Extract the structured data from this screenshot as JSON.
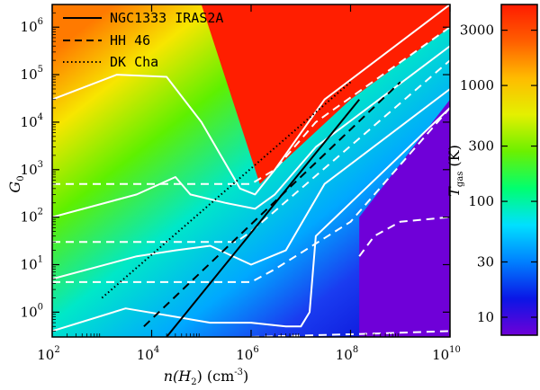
{
  "chart_data": {
    "type": "heatmap",
    "title": "",
    "xlabel": {
      "base": "n(H",
      "sub": "2",
      "rest": ") (cm",
      "sup": "-3",
      "close": ")"
    },
    "ylabel": {
      "base": "G",
      "sub": "0"
    },
    "x_scale": "log",
    "y_scale": "log",
    "xlim": [
      100,
      10000000000
    ],
    "ylim": [
      0.3,
      3000000
    ],
    "x_ticks": [
      {
        "value": 100,
        "base": "10",
        "exp": "2"
      },
      {
        "value": 10000,
        "base": "10",
        "exp": "4"
      },
      {
        "value": 1000000,
        "base": "10",
        "exp": "6"
      },
      {
        "value": 100000000,
        "base": "10",
        "exp": "8"
      },
      {
        "value": 10000000000,
        "base": "10",
        "exp": "10"
      }
    ],
    "y_ticks": [
      {
        "value": 1,
        "base": "10",
        "exp": "0"
      },
      {
        "value": 10,
        "base": "10",
        "exp": "1"
      },
      {
        "value": 100,
        "base": "10",
        "exp": "2"
      },
      {
        "value": 1000,
        "base": "10",
        "exp": "3"
      },
      {
        "value": 10000,
        "base": "10",
        "exp": "4"
      },
      {
        "value": 100000,
        "base": "10",
        "exp": "5"
      },
      {
        "value": 1000000,
        "base": "10",
        "exp": "6"
      }
    ],
    "colorbar": {
      "label": {
        "base": "T",
        "sub": "gas",
        "rest": " (K)"
      },
      "scale": "log",
      "range": [
        7,
        5000
      ],
      "ticks": [
        {
          "value": 10,
          "label": "10"
        },
        {
          "value": 30,
          "label": "30"
        },
        {
          "value": 100,
          "label": "100"
        },
        {
          "value": 300,
          "label": "300"
        },
        {
          "value": 1000,
          "label": "1000"
        },
        {
          "value": 3000,
          "label": "3000"
        }
      ],
      "colors": [
        "#6f00d8",
        "#0a16e6",
        "#0080ff",
        "#00e0ff",
        "#00ff70",
        "#6cf000",
        "#e4f000",
        "#ffbb00",
        "#ff5e00",
        "#ff1b00"
      ]
    },
    "regions": [
      {
        "name": "hot",
        "temperature_K": 3000,
        "color": "#ff1e00",
        "points": [
          [
            100000,
            3000000
          ],
          [
            10000000000,
            3000000
          ],
          [
            10000000000,
            1000000
          ],
          [
            100000000,
            30000
          ],
          [
            3000000,
            1000
          ],
          [
            1500000,
            500
          ]
        ]
      },
      {
        "name": "cold",
        "temperature_K": 8,
        "color": "#6f00d8",
        "points": [
          [
            200000000,
            0.3
          ],
          [
            10000000000,
            0.3
          ],
          [
            10000000000,
            30000
          ],
          [
            150000000,
            100
          ],
          [
            150000000,
            0.3
          ]
        ]
      }
    ],
    "contour_levels_solid": [
      {
        "name": "upper",
        "points": [
          [
            100,
            30000
          ],
          [
            2000,
            100000
          ],
          [
            20000,
            90000
          ],
          [
            100000,
            10000
          ],
          [
            600000,
            400
          ],
          [
            1200000,
            300
          ],
          [
            3000000,
            1000
          ],
          [
            30000000,
            30000
          ],
          [
            10000000000,
            3000000
          ]
        ]
      },
      {
        "name": "middle",
        "points": [
          [
            100,
            100
          ],
          [
            5000,
            300
          ],
          [
            30000,
            700
          ],
          [
            60000,
            300
          ],
          [
            300000,
            200
          ],
          [
            1200000,
            150
          ],
          [
            3000000,
            300
          ],
          [
            20000000,
            3000
          ],
          [
            10000000000,
            400000
          ]
        ]
      },
      {
        "name": "lower",
        "points": [
          [
            100,
            5
          ],
          [
            5000,
            15
          ],
          [
            30000,
            20
          ],
          [
            150000,
            25
          ],
          [
            1000000,
            10
          ],
          [
            5000000,
            20
          ],
          [
            30000000,
            500
          ],
          [
            10000000000,
            50000
          ]
        ]
      },
      {
        "name": "bottom",
        "points": [
          [
            100,
            0.4
          ],
          [
            3000,
            1.2
          ],
          [
            30000,
            0.8
          ],
          [
            150000,
            0.6
          ],
          [
            1000000,
            0.6
          ],
          [
            5000000,
            0.5
          ],
          [
            10000000,
            0.5
          ],
          [
            15000000,
            1
          ],
          [
            20000000,
            40
          ],
          [
            10000000000,
            20000
          ]
        ]
      }
    ],
    "contour_levels_dashed": [
      {
        "name": "d1",
        "points": [
          [
            100,
            500
          ],
          [
            1000000,
            500
          ],
          [
            3000000,
            1000
          ],
          [
            20000000,
            10000
          ],
          [
            10000000000,
            1000000
          ]
        ]
      },
      {
        "name": "d2",
        "points": [
          [
            100,
            30
          ],
          [
            500000,
            30
          ],
          [
            1000000,
            50
          ],
          [
            10000000000,
            200000
          ]
        ]
      },
      {
        "name": "d3",
        "points": [
          [
            100,
            4.3
          ],
          [
            1000000,
            4.3
          ],
          [
            3000000,
            8
          ],
          [
            100000000,
            80
          ],
          [
            10000000000,
            20000
          ]
        ]
      },
      {
        "name": "d4",
        "points": [
          [
            150000000,
            15
          ],
          [
            300000000,
            40
          ],
          [
            1000000000,
            80
          ],
          [
            10000000000,
            100
          ]
        ]
      },
      {
        "name": "d5",
        "points": [
          [
            1000000,
            0.3
          ],
          [
            200000000,
            0.35
          ],
          [
            10000000000,
            0.4
          ]
        ]
      }
    ],
    "series": [
      {
        "name": "NGC1333 IRAS2A",
        "style": "solid",
        "points": [
          [
            20000,
            0.3
          ],
          [
            150000000,
            30000
          ]
        ]
      },
      {
        "name": "HH 46",
        "style": "dashed",
        "points": [
          [
            7000,
            0.5
          ],
          [
            1000000000,
            70000
          ]
        ]
      },
      {
        "name": "DK Cha",
        "style": "dotted",
        "points": [
          [
            1000,
            2
          ],
          [
            100000000,
            70000
          ]
        ]
      }
    ]
  }
}
